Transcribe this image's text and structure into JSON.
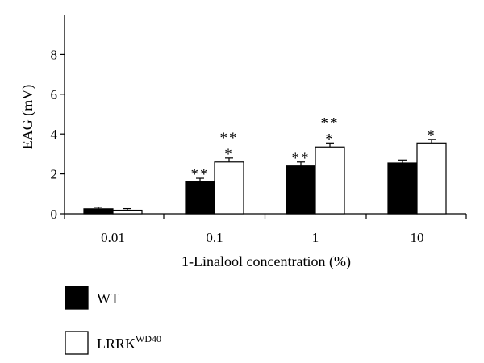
{
  "chart_data": {
    "type": "bar",
    "xlabel": "1-Linalool concentration (%)",
    "ylabel": "EAG (mV)",
    "ylim": [
      0,
      10
    ],
    "yticks": [
      0,
      2,
      4,
      6,
      8
    ],
    "ytick_labels": [
      "0",
      "2",
      "4",
      "6",
      "8"
    ],
    "categories": [
      "0.01",
      "0.1",
      "1",
      "10"
    ],
    "series": [
      {
        "name": "WT",
        "color": "#000000",
        "values": [
          0.25,
          1.6,
          2.4,
          2.55
        ],
        "errors": [
          0.08,
          0.18,
          0.2,
          0.15
        ],
        "significance": [
          "",
          "**",
          "**",
          ""
        ]
      },
      {
        "name": "LRRK",
        "name_superscript": "WD40",
        "color": "#ffffff",
        "values": [
          0.18,
          2.6,
          3.35,
          3.55
        ],
        "errors": [
          0.08,
          0.2,
          0.2,
          0.18
        ],
        "significance": [
          "",
          "**\n*",
          "**\n*",
          "*"
        ]
      }
    ],
    "legend_position": "bottom-left",
    "grid": false
  }
}
